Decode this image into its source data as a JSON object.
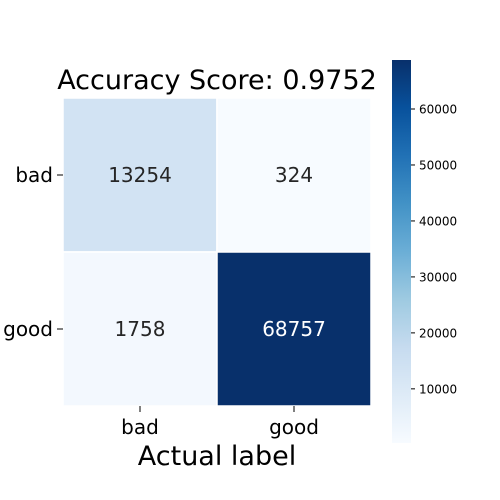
{
  "chart_data": {
    "type": "heatmap",
    "title": "Accuracy Score:  0.9752",
    "xlabel": "Actual label",
    "ylabel": "",
    "x_categories": [
      "bad",
      "good"
    ],
    "y_categories": [
      "bad",
      "good"
    ],
    "values": [
      [
        13254,
        324
      ],
      [
        1758,
        68757
      ]
    ],
    "value_labels": [
      [
        "13254",
        "324"
      ],
      [
        "1758",
        "68757"
      ]
    ],
    "colormap": "Blues",
    "color_low": "#f7fbff",
    "color_high": "#08306b",
    "colorbar": {
      "min": 324,
      "max": 68757,
      "ticks": [
        10000,
        20000,
        30000,
        40000,
        50000,
        60000
      ],
      "tick_labels": [
        "10000",
        "20000",
        "30000",
        "40000",
        "50000",
        "60000"
      ]
    },
    "grid": false,
    "legend": "colorbar-right"
  }
}
